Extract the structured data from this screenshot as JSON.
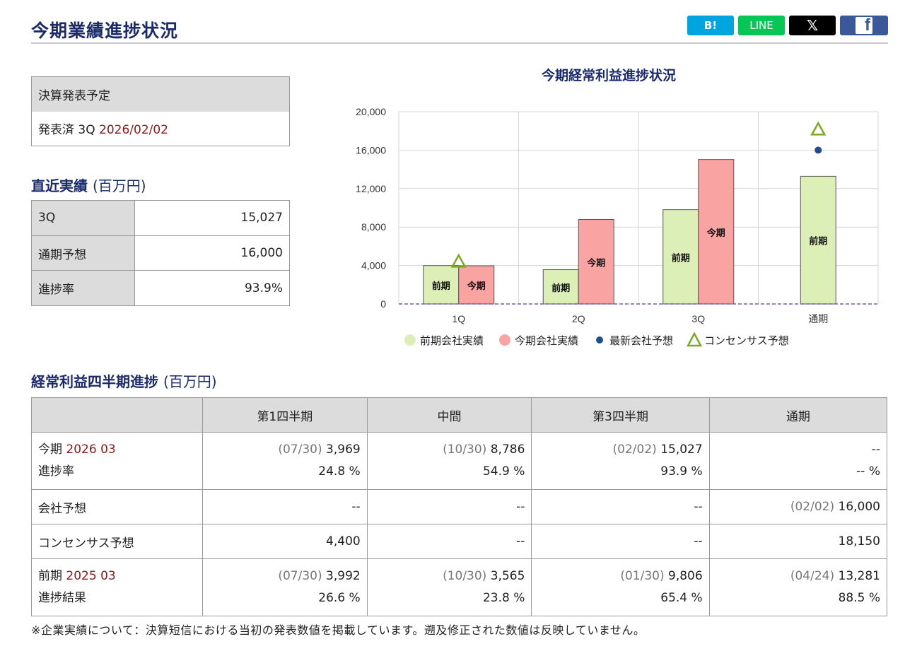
{
  "page": {
    "title": "今期業績進捗状況"
  },
  "share": {
    "hatena": "B!",
    "line": "LINE",
    "x": "𝕏",
    "facebook": "f"
  },
  "announce": {
    "header": "決算発表予定",
    "status": "発表済 3Q",
    "date": "2026/02/02"
  },
  "recent": {
    "heading": "直近実績",
    "unit": "(百万円)",
    "rows": [
      {
        "label": "3Q",
        "value": "15,027"
      },
      {
        "label": "通期予想",
        "value": "16,000"
      },
      {
        "label": "進捗率",
        "value": "93.9%"
      }
    ]
  },
  "chart_data": {
    "type": "bar",
    "title": "今期経常利益進捗状況",
    "categories": [
      "1Q",
      "2Q",
      "3Q",
      "通期"
    ],
    "ylim": [
      0,
      20000
    ],
    "yticks": [
      "0",
      "4,000",
      "8,000",
      "12,000",
      "16,000",
      "20,000"
    ],
    "grid": true,
    "legend_position": "bottom",
    "series": [
      {
        "name": "前期会社実績",
        "values": [
          3992,
          3565,
          9806,
          13281
        ],
        "color": "#dcefb6",
        "bar_label": "前期"
      },
      {
        "name": "今期会社実績",
        "values": [
          3969,
          8786,
          15027,
          null
        ],
        "color": "#f9a3a3",
        "bar_label": "今期"
      },
      {
        "name": "最新会社予想",
        "values": [
          null,
          null,
          null,
          16000
        ],
        "color": "#1f4e8c",
        "marker": "circle"
      },
      {
        "name": "コンセンサス予想",
        "values": [
          4400,
          null,
          null,
          18150
        ],
        "color": "#7aab1e",
        "marker": "triangle"
      }
    ]
  },
  "quarterly": {
    "heading": "経常利益四半期進捗",
    "unit": "(百万円)",
    "columns": [
      "",
      "第1四半期",
      "中間",
      "第3四半期",
      "通期"
    ],
    "current": {
      "label": "今期",
      "period": "2026 03",
      "sub_label": "進捗率",
      "cells": [
        {
          "date": "(07/30)",
          "value": "3,969",
          "rate": "24.8 %"
        },
        {
          "date": "(10/30)",
          "value": "8,786",
          "rate": "54.9 %"
        },
        {
          "date": "(02/02)",
          "value": "15,027",
          "rate": "93.9 %"
        },
        {
          "date": "",
          "value": "--",
          "rate": "-- %"
        }
      ]
    },
    "company_forecast": {
      "label": "会社予想",
      "cells": [
        {
          "date": "",
          "value": "--"
        },
        {
          "date": "",
          "value": "--"
        },
        {
          "date": "",
          "value": "--"
        },
        {
          "date": "(02/02)",
          "value": "16,000"
        }
      ]
    },
    "consensus": {
      "label": "コンセンサス予想",
      "cells": [
        "4,400",
        "--",
        "--",
        "18,150"
      ]
    },
    "previous": {
      "label": "前期",
      "period": "2025 03",
      "sub_label": "進捗結果",
      "cells": [
        {
          "date": "(07/30)",
          "value": "3,992",
          "rate": "26.6 %"
        },
        {
          "date": "(10/30)",
          "value": "3,565",
          "rate": "23.8 %"
        },
        {
          "date": "(01/30)",
          "value": "9,806",
          "rate": "65.4 %"
        },
        {
          "date": "(04/24)",
          "value": "13,281",
          "rate": "88.5 %"
        }
      ]
    }
  },
  "footnote": "※企業実績について：決算短信における当初の発表数値を掲載しています。遡及修正された数値は反映していません。"
}
